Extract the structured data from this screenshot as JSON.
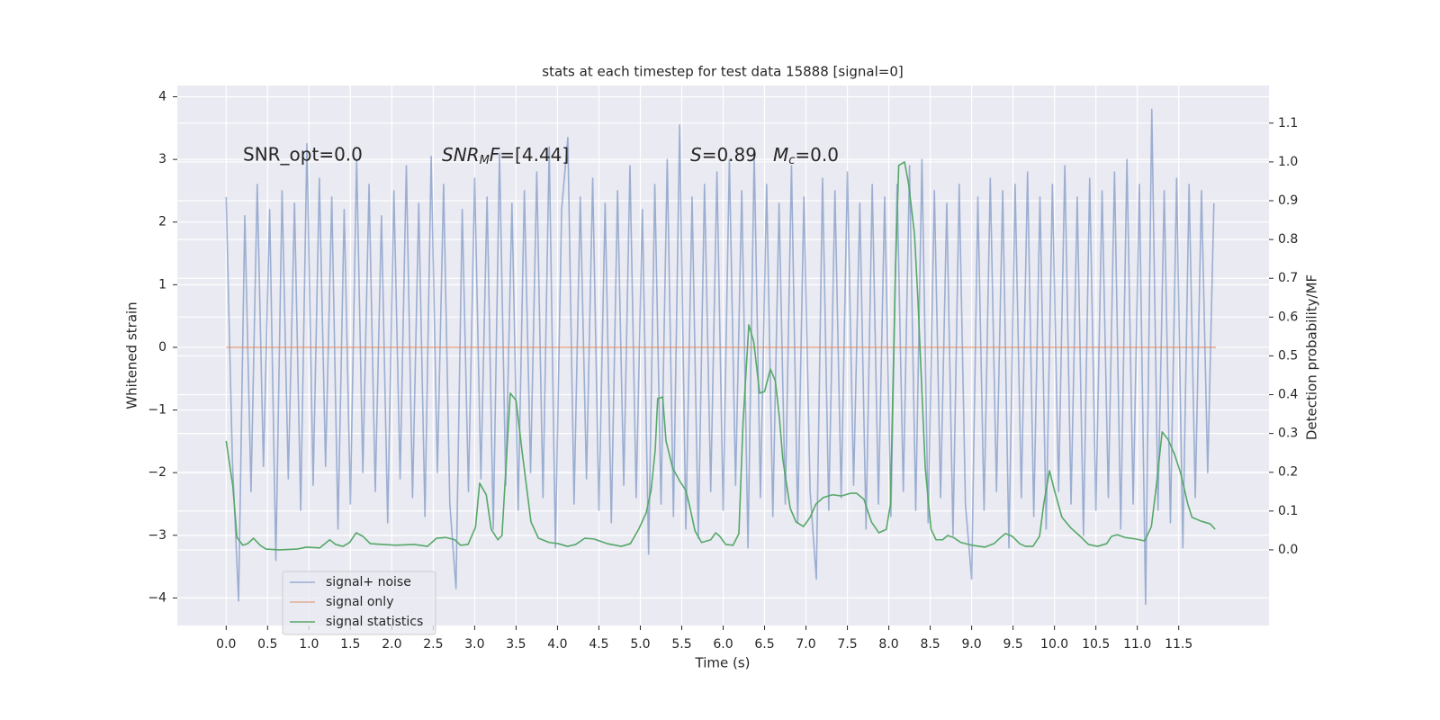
{
  "chart_data": {
    "type": "line",
    "title": "stats at each timestep for test data 15888 [signal=0]",
    "xlabel": "Time (s)",
    "ylabel": "Whitened strain",
    "y2label": "Detection probability/MF",
    "annotations": [
      "SNR_opt=0.0",
      [
        "SNR",
        "M",
        "F",
        "=[4.44]"
      ],
      [
        "S",
        "=0.89",
        "M",
        "c",
        "=0.0"
      ]
    ],
    "grid": true,
    "legend": "lower left",
    "xlim": [
      -0.59,
      12.59
    ],
    "ylim": [
      -4.44,
      4.18
    ],
    "y2lim": [
      -0.195,
      1.197
    ],
    "xticks": [
      {
        "value": 0,
        "label": "0.0"
      },
      0.5,
      {
        "value": 1,
        "label": "1.0"
      },
      1.5,
      {
        "value": 2,
        "label": "2.0"
      },
      2.5,
      {
        "value": 3,
        "label": "3.0"
      },
      3.5,
      {
        "value": 4,
        "label": "4.0"
      },
      4.5,
      {
        "value": 5,
        "label": "5.0"
      },
      5.5,
      {
        "value": 6,
        "label": "6.0"
      },
      6.5,
      {
        "value": 7,
        "label": "7.0"
      },
      7.5,
      {
        "value": 8,
        "label": "8.0"
      },
      8.5,
      {
        "value": 9,
        "label": "9.0"
      },
      9.5,
      {
        "value": 10,
        "label": "10.0"
      },
      10.5,
      {
        "value": 11,
        "label": "11.0"
      },
      11.5
    ],
    "yticks": [
      {
        "value": -4,
        "label": "−4"
      },
      {
        "value": -3,
        "label": "−3"
      },
      {
        "value": -2,
        "label": "−2"
      },
      {
        "value": -1,
        "label": "−1"
      },
      0,
      1,
      2,
      3,
      4
    ],
    "y2ticks": [
      {
        "value": 0,
        "label": "0.0"
      },
      0.1,
      0.2,
      0.3,
      0.4,
      0.5,
      0.6,
      0.7,
      0.8,
      0.9,
      {
        "value": 1,
        "label": "1.0"
      },
      1.1
    ],
    "series": [
      {
        "name": "signal+ noise",
        "color": "#4c72b0",
        "alpha": 0.5,
        "x": [
          0,
          0.075,
          0.15,
          0.225,
          0.3,
          0.375,
          0.45,
          0.525,
          0.6,
          0.675,
          0.75,
          0.825,
          0.9,
          0.975,
          1.05,
          1.125,
          1.2,
          1.275,
          1.35,
          1.425,
          1.5,
          1.575,
          1.65,
          1.725,
          1.8,
          1.875,
          1.95,
          2.025,
          2.1,
          2.175,
          2.25,
          2.325,
          2.4,
          2.475,
          2.55,
          2.625,
          2.7,
          2.775,
          2.85,
          2.925,
          3,
          3.075,
          3.15,
          3.225,
          3.3,
          3.375,
          3.45,
          3.525,
          3.6,
          3.675,
          3.75,
          3.825,
          3.9,
          3.975,
          4.05,
          4.125,
          4.2,
          4.275,
          4.35,
          4.425,
          4.5,
          4.575,
          4.65,
          4.725,
          4.8,
          4.875,
          4.95,
          5.025,
          5.1,
          5.175,
          5.25,
          5.325,
          5.4,
          5.475,
          5.55,
          5.625,
          5.7,
          5.775,
          5.85,
          5.925,
          6,
          6.075,
          6.15,
          6.225,
          6.3,
          6.375,
          6.45,
          6.525,
          6.6,
          6.675,
          6.75,
          6.825,
          6.9,
          6.975,
          7.05,
          7.125,
          7.2,
          7.275,
          7.35,
          7.425,
          7.5,
          7.575,
          7.65,
          7.725,
          7.8,
          7.875,
          7.95,
          8.025,
          8.1,
          8.175,
          8.25,
          8.325,
          8.4,
          8.475,
          8.55,
          8.625,
          8.7,
          8.775,
          8.85,
          8.925,
          9,
          9.075,
          9.15,
          9.225,
          9.3,
          9.375,
          9.45,
          9.525,
          9.6,
          9.675,
          9.75,
          9.825,
          9.9,
          9.975,
          10.05,
          10.125,
          10.2,
          10.275,
          10.35,
          10.425,
          10.5,
          10.575,
          10.65,
          10.725,
          10.8,
          10.875,
          10.95,
          11.025,
          11.1,
          11.175,
          11.25,
          11.325,
          11.4,
          11.475,
          11.55,
          11.625,
          11.7,
          11.775,
          11.85,
          11.925
        ],
        "values": [
          2.4,
          -1.8,
          -4.05,
          2.1,
          -2.3,
          2.6,
          -1.9,
          2.2,
          -3.4,
          2.5,
          -2.1,
          2.3,
          -2.6,
          3.25,
          -2.2,
          2.7,
          -1.9,
          2.4,
          -2.9,
          2.2,
          -2.5,
          3.0,
          -2.0,
          2.6,
          -2.3,
          2.1,
          -2.8,
          2.5,
          -2.1,
          2.9,
          -2.4,
          2.3,
          -2.7,
          3.05,
          -2.0,
          2.6,
          -2.5,
          -3.85,
          2.2,
          -2.3,
          2.7,
          -2.1,
          2.4,
          -2.9,
          3.1,
          -2.2,
          2.3,
          -2.6,
          2.5,
          -2.0,
          2.8,
          -2.4,
          3.2,
          -3.2,
          2.2,
          3.35,
          -2.5,
          2.4,
          -2.1,
          2.7,
          -2.6,
          2.3,
          -2.8,
          2.5,
          -2.2,
          2.9,
          -2.4,
          2.2,
          -3.3,
          2.6,
          -2.5,
          3.0,
          -2.7,
          3.55,
          -2.9,
          2.4,
          -3.05,
          2.6,
          -2.3,
          2.8,
          -2.6,
          3.0,
          -2.2,
          2.5,
          -3.2,
          3.1,
          -2.4,
          2.6,
          -2.7,
          2.3,
          -2.5,
          2.9,
          -2.8,
          2.4,
          -2.3,
          -3.7,
          2.7,
          -2.6,
          2.5,
          -2.4,
          2.8,
          -2.2,
          2.3,
          -2.9,
          2.6,
          -2.5,
          2.4,
          -2.7,
          2.6,
          -2.3,
          2.9,
          -2.6,
          3.0,
          -2.8,
          2.5,
          -2.4,
          2.3,
          -3.0,
          2.6,
          -2.5,
          -3.7,
          2.4,
          -2.6,
          2.7,
          -2.3,
          2.5,
          -3.2,
          2.6,
          -2.4,
          2.8,
          -2.7,
          2.4,
          -2.9,
          2.6,
          -2.3,
          2.9,
          -2.5,
          2.4,
          -3.0,
          2.7,
          -2.6,
          2.5,
          -2.4,
          2.8,
          -2.9,
          3.0,
          -2.5,
          2.6,
          -4.1,
          3.8,
          -2.6,
          2.5,
          -2.8,
          2.7,
          -3.2,
          2.6,
          -2.4,
          2.5,
          -2.0,
          2.3
        ]
      },
      {
        "name": "signal only",
        "color": "#dd8452",
        "alpha": 0.6,
        "x": [
          0,
          11.95
        ],
        "values": [
          0,
          0
        ]
      },
      {
        "name": "signal statistics",
        "color": "#55a868",
        "alpha": 1,
        "axis": "y2",
        "x": [
          0,
          0.08,
          0.13,
          0.2,
          0.26,
          0.33,
          0.41,
          0.48,
          0.64,
          0.86,
          0.97,
          1.13,
          1.25,
          1.32,
          1.41,
          1.49,
          1.57,
          1.65,
          1.74,
          1.89,
          2.05,
          2.27,
          2.43,
          2.54,
          2.65,
          2.76,
          2.83,
          2.92,
          3.01,
          3.06,
          3.14,
          3.2,
          3.28,
          3.33,
          3.43,
          3.5,
          3.57,
          3.68,
          3.77,
          3.9,
          4.01,
          4.12,
          4.22,
          4.33,
          4.44,
          4.6,
          4.77,
          4.88,
          4.98,
          5.07,
          5.13,
          5.18,
          5.21,
          5.27,
          5.31,
          5.39,
          5.48,
          5.55,
          5.59,
          5.66,
          5.74,
          5.85,
          5.91,
          5.96,
          6.03,
          6.12,
          6.19,
          6.24,
          6.31,
          6.37,
          6.44,
          6.5,
          6.57,
          6.63,
          6.68,
          6.72,
          6.81,
          6.88,
          6.97,
          7.05,
          7.12,
          7.21,
          7.32,
          7.43,
          7.54,
          7.61,
          7.7,
          7.79,
          7.88,
          7.97,
          8.02,
          8.08,
          8.12,
          8.19,
          8.24,
          8.31,
          8.35,
          8.44,
          8.51,
          8.57,
          8.65,
          8.71,
          8.78,
          8.87,
          9,
          9.16,
          9.27,
          9.35,
          9.41,
          9.49,
          9.58,
          9.65,
          9.74,
          9.82,
          9.87,
          9.94,
          10,
          10.09,
          10.2,
          10.31,
          10.41,
          10.52,
          10.63,
          10.69,
          10.76,
          10.85,
          10.98,
          11.09,
          11.17,
          11.23,
          11.3,
          11.37,
          11.45,
          11.52,
          11.61,
          11.66,
          11.77,
          11.88,
          11.94
        ],
        "values": [
          0.281,
          0.165,
          0.032,
          0.012,
          0.016,
          0.03,
          0.012,
          0.002,
          0,
          0.002,
          0.007,
          0.005,
          0.026,
          0.014,
          0.009,
          0.019,
          0.044,
          0.035,
          0.016,
          0.014,
          0.012,
          0.014,
          0.009,
          0.03,
          0.032,
          0.026,
          0.012,
          0.014,
          0.058,
          0.172,
          0.142,
          0.053,
          0.026,
          0.037,
          0.404,
          0.385,
          0.258,
          0.072,
          0.03,
          0.019,
          0.016,
          0.009,
          0.014,
          0.03,
          0.028,
          0.016,
          0.009,
          0.016,
          0.053,
          0.095,
          0.153,
          0.258,
          0.39,
          0.394,
          0.281,
          0.211,
          0.176,
          0.153,
          0.118,
          0.049,
          0.019,
          0.026,
          0.044,
          0.035,
          0.014,
          0.012,
          0.042,
          0.327,
          0.58,
          0.536,
          0.404,
          0.408,
          0.466,
          0.436,
          0.339,
          0.234,
          0.107,
          0.072,
          0.06,
          0.084,
          0.118,
          0.135,
          0.142,
          0.139,
          0.146,
          0.146,
          0.13,
          0.072,
          0.044,
          0.053,
          0.118,
          0.722,
          0.991,
          1.0,
          0.942,
          0.814,
          0.652,
          0.211,
          0.053,
          0.026,
          0.026,
          0.037,
          0.032,
          0.019,
          0.012,
          0.007,
          0.016,
          0.032,
          0.042,
          0.035,
          0.016,
          0.009,
          0.009,
          0.035,
          0.118,
          0.204,
          0.153,
          0.084,
          0.056,
          0.035,
          0.014,
          0.009,
          0.016,
          0.035,
          0.039,
          0.032,
          0.028,
          0.023,
          0.06,
          0.165,
          0.304,
          0.285,
          0.246,
          0.2,
          0.118,
          0.084,
          0.074,
          0.067,
          0.053
        ]
      }
    ]
  }
}
